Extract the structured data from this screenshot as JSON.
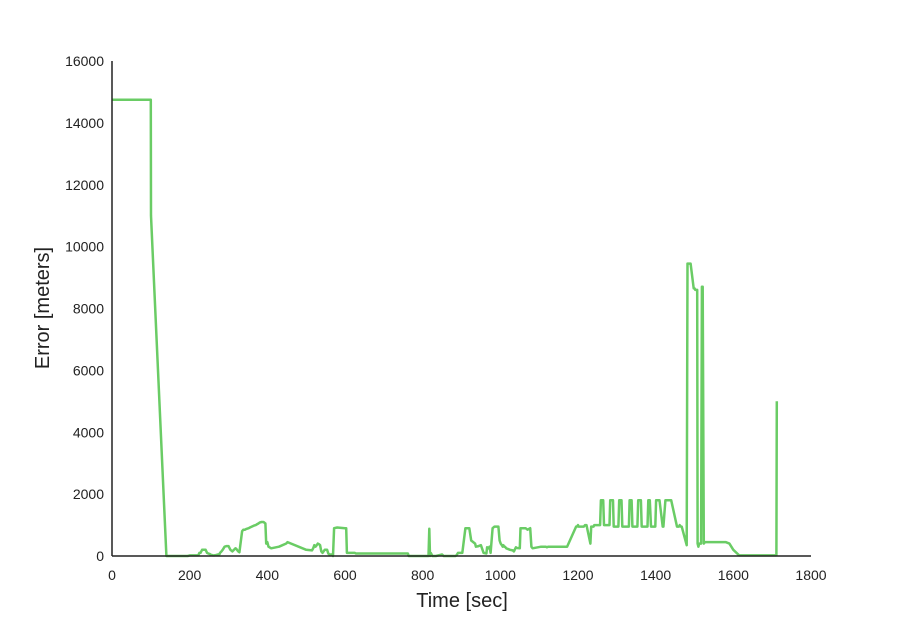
{
  "chart_data": {
    "type": "line",
    "title": "",
    "xlabel": "Time [sec]",
    "ylabel": "Error [meters]",
    "xlim": [
      0,
      1800
    ],
    "ylim": [
      0,
      16000
    ],
    "xticks": [
      "0",
      "200",
      "400",
      "600",
      "800",
      "1000",
      "1200",
      "1400",
      "1600",
      "1800"
    ],
    "yticks": [
      "0",
      "2000",
      "4000",
      "6000",
      "8000",
      "10000",
      "12000",
      "14000",
      "16000"
    ],
    "grid": false,
    "legend": "none",
    "line_color": "#6acc65",
    "series": [
      {
        "x": [
          0,
          96,
          98,
          100,
          100.5,
          140,
          142,
          160,
          163,
          170,
          175,
          180,
          185,
          195,
          200,
          205,
          210,
          215,
          222,
          225,
          228,
          232,
          235,
          238,
          241,
          245,
          248,
          252,
          255,
          258,
          260,
          263,
          267,
          270,
          273,
          277,
          278,
          282,
          285,
          290,
          295,
          300,
          305,
          310,
          318,
          320,
          323,
          325,
          328,
          335,
          338,
          342,
          345,
          352,
          355,
          360,
          365,
          370,
          373,
          377,
          380,
          385,
          390,
          395,
          397,
          400,
          403,
          410,
          430,
          448,
          450,
          452,
          500,
          515,
          518,
          521,
          524,
          527,
          530,
          533,
          536,
          539,
          542,
          545,
          548,
          551,
          554,
          557,
          560,
          563,
          566,
          569,
          572,
          580,
          600,
          603,
          605,
          625,
          628,
          630,
          632,
          637,
          640,
          643,
          650,
          665,
          680,
          690,
          695,
          700,
          720,
          760,
          762,
          764,
          766,
          768,
          790,
          815,
          817,
          819,
          821,
          823,
          825,
          827,
          830,
          832,
          834,
          850,
          854,
          880,
          884,
          887,
          891,
          895,
          897,
          902,
          903,
          910,
          915,
          920,
          925,
          935,
          937,
          944,
          950,
          957,
          964,
          966,
          969,
          972,
          975,
          980,
          985,
          990,
          992,
          995,
          998,
          1001,
          1004,
          1006,
          1008,
          1010,
          1012,
          1015,
          1025,
          1032,
          1035,
          1040,
          1043,
          1050,
          1052,
          1060,
          1065,
          1070,
          1077,
          1080,
          1083,
          1105,
          1110,
          1112,
          1115,
          1117,
          1120,
          1123,
          1125,
          1130,
          1135,
          1150,
          1163,
          1165,
          1170,
          1172,
          1195,
          1197,
          1200,
          1201,
          1215,
          1218,
          1222,
          1232,
          1234,
          1240,
          1242,
          1257,
          1259,
          1265,
          1267,
          1281,
          1283,
          1290,
          1292,
          1304,
          1306,
          1312,
          1314,
          1331,
          1333,
          1338,
          1340,
          1353,
          1355,
          1362,
          1364,
          1379,
          1381,
          1385,
          1388,
          1399,
          1401,
          1410,
          1418,
          1420,
          1425,
          1440,
          1455,
          1460,
          1462,
          1465,
          1467,
          1480,
          1482,
          1485,
          1490,
          1498,
          1500,
          1502,
          1505,
          1507,
          1508,
          1510,
          1512,
          1515,
          1517,
          1519,
          1521,
          1524,
          1527,
          1529,
          1531,
          1533,
          1535,
          1560,
          1580,
          1590,
          1600,
          1615,
          1620,
          1660,
          1700,
          1710,
          1711,
          1712
        ],
        "y": [
          14750,
          14750,
          14750,
          14750,
          11000,
          0,
          0,
          0,
          0,
          0,
          0,
          0,
          0,
          0,
          20,
          20,
          20,
          20,
          20,
          100,
          100,
          200,
          200,
          200,
          200,
          100,
          80,
          60,
          40,
          30,
          20,
          20,
          30,
          40,
          50,
          60,
          100,
          150,
          200,
          300,
          320,
          320,
          200,
          150,
          250,
          230,
          180,
          150,
          120,
          800,
          850,
          850,
          870,
          900,
          920,
          950,
          980,
          1000,
          1020,
          1050,
          1080,
          1100,
          1100,
          1050,
          400,
          450,
          300,
          250,
          300,
          400,
          420,
          450,
          200,
          180,
          250,
          350,
          300,
          350,
          400,
          380,
          350,
          150,
          100,
          150,
          200,
          200,
          200,
          80,
          50,
          50,
          50,
          0,
          900,
          920,
          900,
          900,
          100,
          100,
          80,
          80,
          80,
          80,
          80,
          80,
          80,
          80,
          80,
          80,
          80,
          80,
          80,
          80,
          80,
          0,
          0,
          0,
          0,
          0,
          880,
          0,
          100,
          50,
          0,
          0,
          0,
          0,
          0,
          50,
          0,
          0,
          0,
          20,
          100,
          100,
          100,
          100,
          200,
          900,
          900,
          900,
          500,
          400,
          300,
          320,
          350,
          100,
          80,
          280,
          250,
          300,
          100,
          900,
          950,
          950,
          950,
          950,
          500,
          400,
          350,
          300,
          350,
          300,
          300,
          250,
          200,
          180,
          150,
          280,
          260,
          250,
          900,
          900,
          900,
          850,
          900,
          300,
          250,
          300,
          300,
          300,
          300,
          300,
          280,
          300,
          300,
          300,
          300,
          300,
          300,
          300,
          300,
          300,
          950,
          950,
          1000,
          950,
          950,
          1000,
          1000,
          400,
          950,
          950,
          1000,
          1000,
          1800,
          1800,
          1000,
          1000,
          1800,
          1800,
          950,
          950,
          1800,
          1800,
          950,
          950,
          1800,
          1800,
          950,
          950,
          1800,
          1800,
          950,
          950,
          1800,
          1800,
          950,
          950,
          1800,
          1800,
          950,
          950,
          1800,
          1800,
          950,
          950,
          1000,
          950,
          950,
          350,
          9450,
          9450,
          9450,
          8650,
          8650,
          8600,
          8600,
          8600,
          400,
          300,
          400,
          400,
          400,
          8700,
          8700,
          400,
          450,
          450,
          450,
          450,
          450,
          450,
          450,
          400,
          200,
          20,
          20,
          20,
          20,
          20,
          20,
          5000
        ]
      }
    ]
  }
}
